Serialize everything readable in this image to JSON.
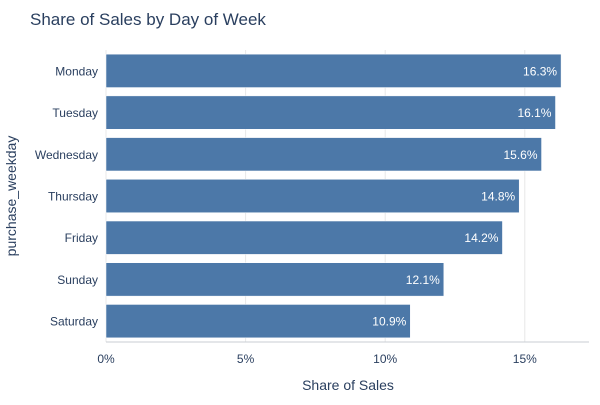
{
  "chart_data": {
    "type": "bar",
    "orientation": "horizontal",
    "title": "Share of Sales by Day of Week",
    "xlabel": "Share of Sales",
    "ylabel": "purchase_weekday",
    "categories": [
      "Monday",
      "Tuesday",
      "Wednesday",
      "Thursday",
      "Friday",
      "Sunday",
      "Saturday"
    ],
    "values": [
      16.3,
      16.1,
      15.6,
      14.8,
      14.2,
      12.1,
      10.9
    ],
    "data_labels": [
      "16.3%",
      "16.1%",
      "15.6%",
      "14.8%",
      "14.2%",
      "12.1%",
      "10.9%"
    ],
    "xlim": [
      0,
      17.3
    ],
    "xticks": [
      0,
      5,
      10,
      15
    ],
    "xtick_labels": [
      "0%",
      "5%",
      "10%",
      "15%"
    ],
    "grid": true,
    "legend": "none",
    "colors": {
      "bar": "#4c78a8",
      "bar_outline": "#ffffff",
      "grid": "#e8e8e8",
      "axis": "#c8cdd3",
      "text": "#2a3f5f",
      "tick_text": "#2a3f5f",
      "data_label": "#ffffff"
    }
  }
}
